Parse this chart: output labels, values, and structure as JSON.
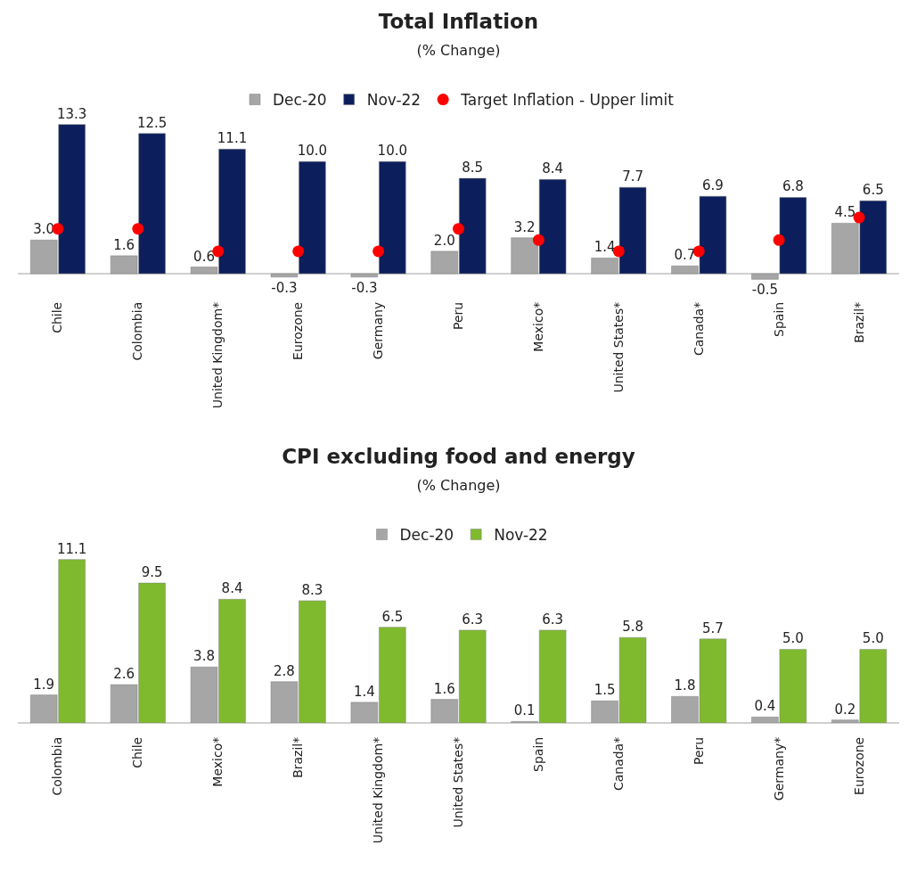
{
  "chart_data": [
    {
      "type": "bar",
      "title": "Total Inflation",
      "subtitle": "(% Change)",
      "categories": [
        "Chile",
        "Colombia",
        "United Kingdom*",
        "Eurozone",
        "Germany",
        "Peru",
        "Mexico*",
        "United States*",
        "Canada*",
        "Spain",
        "Brazil*"
      ],
      "series": [
        {
          "name": "Dec-20",
          "color": "#a6a6a6",
          "values": [
            3.0,
            1.6,
            0.6,
            -0.3,
            -0.3,
            2.0,
            3.2,
            1.4,
            0.7,
            -0.5,
            4.5
          ],
          "value_labels": [
            "3.0",
            "1.6",
            "0.6",
            "-0.3",
            "-0.3",
            "2.0",
            "3.2",
            "1.4",
            "0.7",
            "-0.5",
            "4.5"
          ]
        },
        {
          "name": "Nov-22",
          "color": "#0c1f5c",
          "values": [
            13.3,
            12.5,
            11.1,
            10.0,
            10.0,
            8.5,
            8.4,
            7.7,
            6.9,
            6.8,
            6.5
          ],
          "value_labels": [
            "13.3",
            "12.5",
            "11.1",
            "10.0",
            "10.0",
            "8.5",
            "8.4",
            "7.7",
            "6.9",
            "6.8",
            "6.5"
          ]
        },
        {
          "name": "Target Inflation - Upper limit",
          "type": "scatter",
          "color": "#ff0000",
          "values": [
            4,
            4,
            2,
            2,
            2,
            4,
            3,
            2,
            2,
            3,
            5
          ]
        }
      ],
      "marker": "circle",
      "legend": "top",
      "grid": false,
      "tick_labels": "x"
    },
    {
      "type": "bar",
      "title": "CPI excluding food and energy",
      "subtitle": "(% Change)",
      "categories": [
        "Colombia",
        "Chile",
        "Mexico*",
        "Brazil*",
        "United Kingdom*",
        "United States*",
        "Spain",
        "Canada*",
        "Peru",
        "Germany*",
        "Eurozone"
      ],
      "series": [
        {
          "name": "Dec-20",
          "color": "#a6a6a6",
          "values": [
            1.9,
            2.6,
            3.8,
            2.8,
            1.4,
            1.6,
            0.1,
            1.5,
            1.8,
            0.4,
            0.2
          ],
          "value_labels": [
            "1.9",
            "2.6",
            "3.8",
            "2.8",
            "1.4",
            "1.6",
            "0.1",
            "1.5",
            "1.8",
            "0.4",
            "0.2"
          ]
        },
        {
          "name": "Nov-22",
          "color": "#7fba2e",
          "values": [
            11.1,
            9.5,
            8.4,
            8.3,
            6.5,
            6.3,
            6.3,
            5.8,
            5.7,
            5.0,
            5.0
          ],
          "value_labels": [
            "11.1",
            "9.5",
            "8.4",
            "8.3",
            "6.5",
            "6.3",
            "6.3",
            "5.8",
            "5.7",
            "5.0",
            "5.0"
          ]
        }
      ],
      "legend": "top",
      "grid": false,
      "tick_labels": "x"
    }
  ]
}
